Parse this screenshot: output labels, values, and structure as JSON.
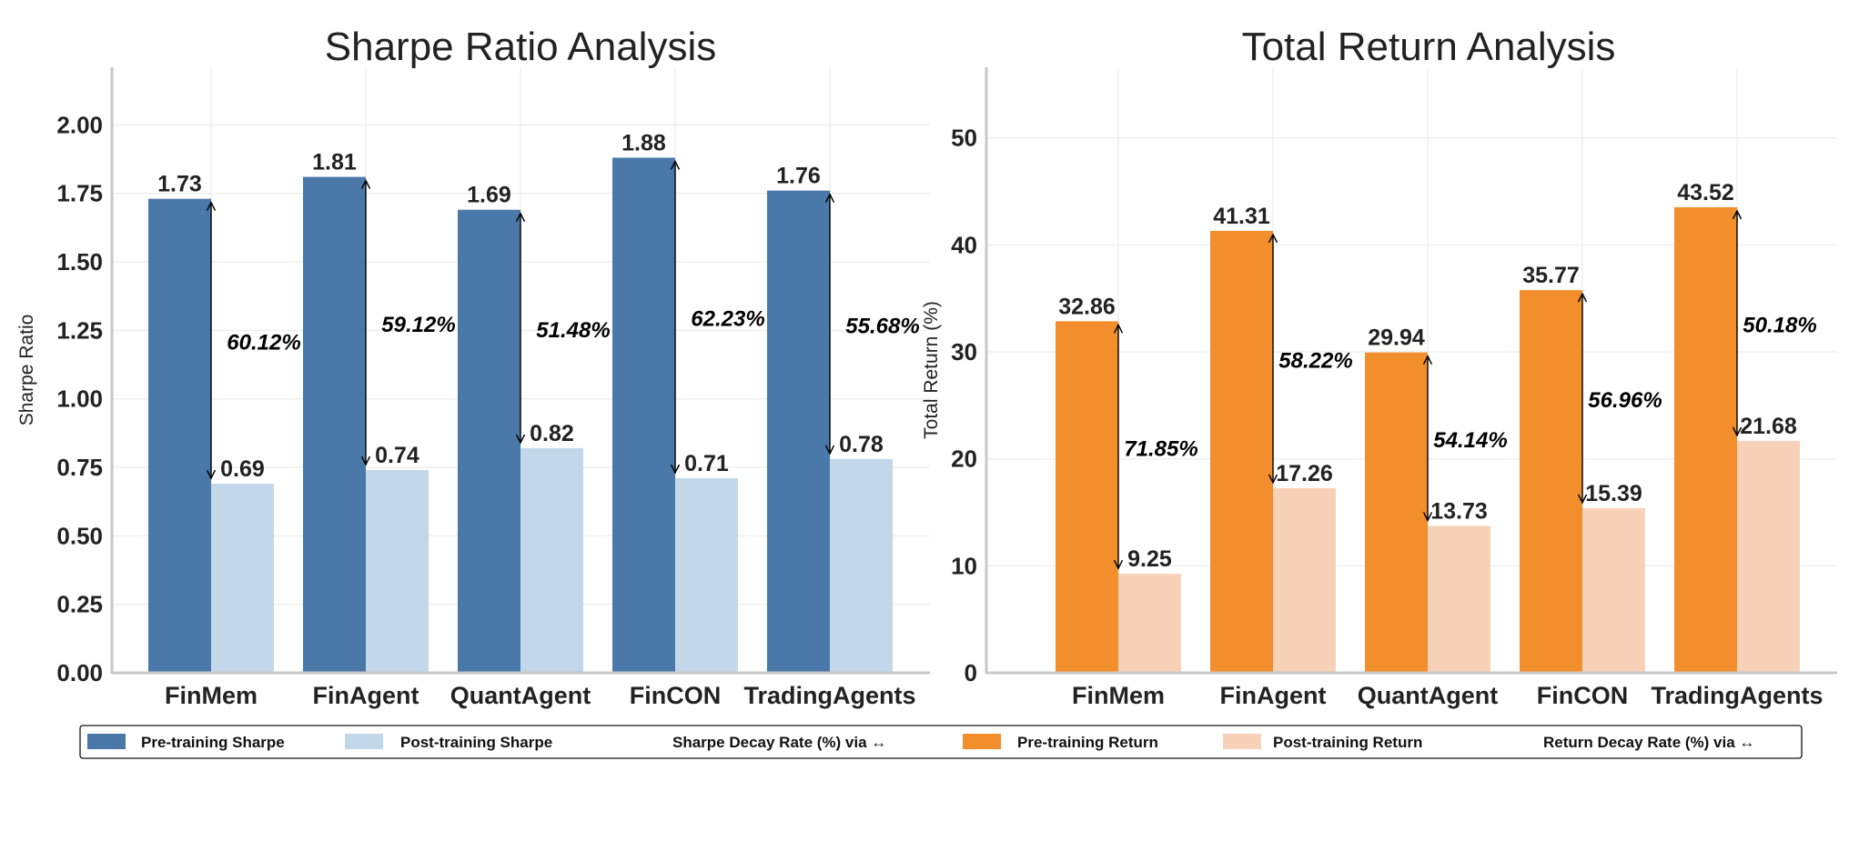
{
  "chart_data": [
    {
      "type": "bar",
      "title": "Sharpe Ratio Analysis",
      "xlabel": "",
      "ylabel": "Sharpe Ratio",
      "categories": [
        "FinMem",
        "FinAgent",
        "QuantAgent",
        "FinCON",
        "TradingAgents"
      ],
      "series": [
        {
          "name": "Pre-training Sharpe",
          "color": "#4a78a8",
          "values": [
            1.73,
            1.81,
            1.69,
            1.88,
            1.76
          ]
        },
        {
          "name": "Post-training Sharpe",
          "color": "#c2d8ea",
          "values": [
            0.69,
            0.74,
            0.82,
            0.71,
            0.78
          ]
        }
      ],
      "value_labels": {
        "pre": [
          "1.73",
          "1.81",
          "1.69",
          "1.88",
          "1.76"
        ],
        "post": [
          "0.69",
          "0.74",
          "0.82",
          "0.71",
          "0.78"
        ]
      },
      "decay_labels": [
        "60.12%",
        "59.12%",
        "51.48%",
        "62.23%",
        "55.68%"
      ],
      "ylim": [
        0,
        2.21
      ],
      "yticks": [
        "0.00",
        "0.25",
        "0.50",
        "0.75",
        "1.00",
        "1.25",
        "1.50",
        "1.75",
        "2.00"
      ],
      "grid": true
    },
    {
      "type": "bar",
      "title": "Total Return Analysis",
      "xlabel": "",
      "ylabel": "Total Return (%)",
      "categories": [
        "FinMem",
        "FinAgent",
        "QuantAgent",
        "FinCON",
        "TradingAgents"
      ],
      "series": [
        {
          "name": "Pre-training Return",
          "color": "#f28e2b",
          "values": [
            32.86,
            41.31,
            29.94,
            35.77,
            43.52
          ]
        },
        {
          "name": "Post-training Return",
          "color": "#f7d2b9",
          "values": [
            9.25,
            17.26,
            13.73,
            15.39,
            21.68
          ]
        }
      ],
      "value_labels": {
        "pre": [
          "32.86",
          "41.31",
          "29.94",
          "35.77",
          "43.52"
        ],
        "post": [
          "9.25",
          "17.26",
          "13.73",
          "15.39",
          "21.68"
        ]
      },
      "decay_labels": [
        "71.85%",
        "58.22%",
        "54.14%",
        "56.96%",
        "50.18%"
      ],
      "ylim": [
        0,
        56.6
      ],
      "yticks": [
        "0",
        "10",
        "20",
        "30",
        "40",
        "50"
      ],
      "grid": true
    }
  ],
  "legend": {
    "placement": "bottom",
    "items": [
      {
        "label": "Pre-training Sharpe",
        "color": "#4a78a8"
      },
      {
        "label": "Post-training Sharpe",
        "color": "#c2d8ea"
      },
      {
        "label": "Sharpe Decay Rate (%) via ↔"
      },
      {
        "label": "Pre-training Return",
        "color": "#f28e2b"
      },
      {
        "label": "Post-training Return",
        "color": "#f7d2b9"
      },
      {
        "label": "Return Decay Rate (%) via ↔"
      }
    ]
  }
}
